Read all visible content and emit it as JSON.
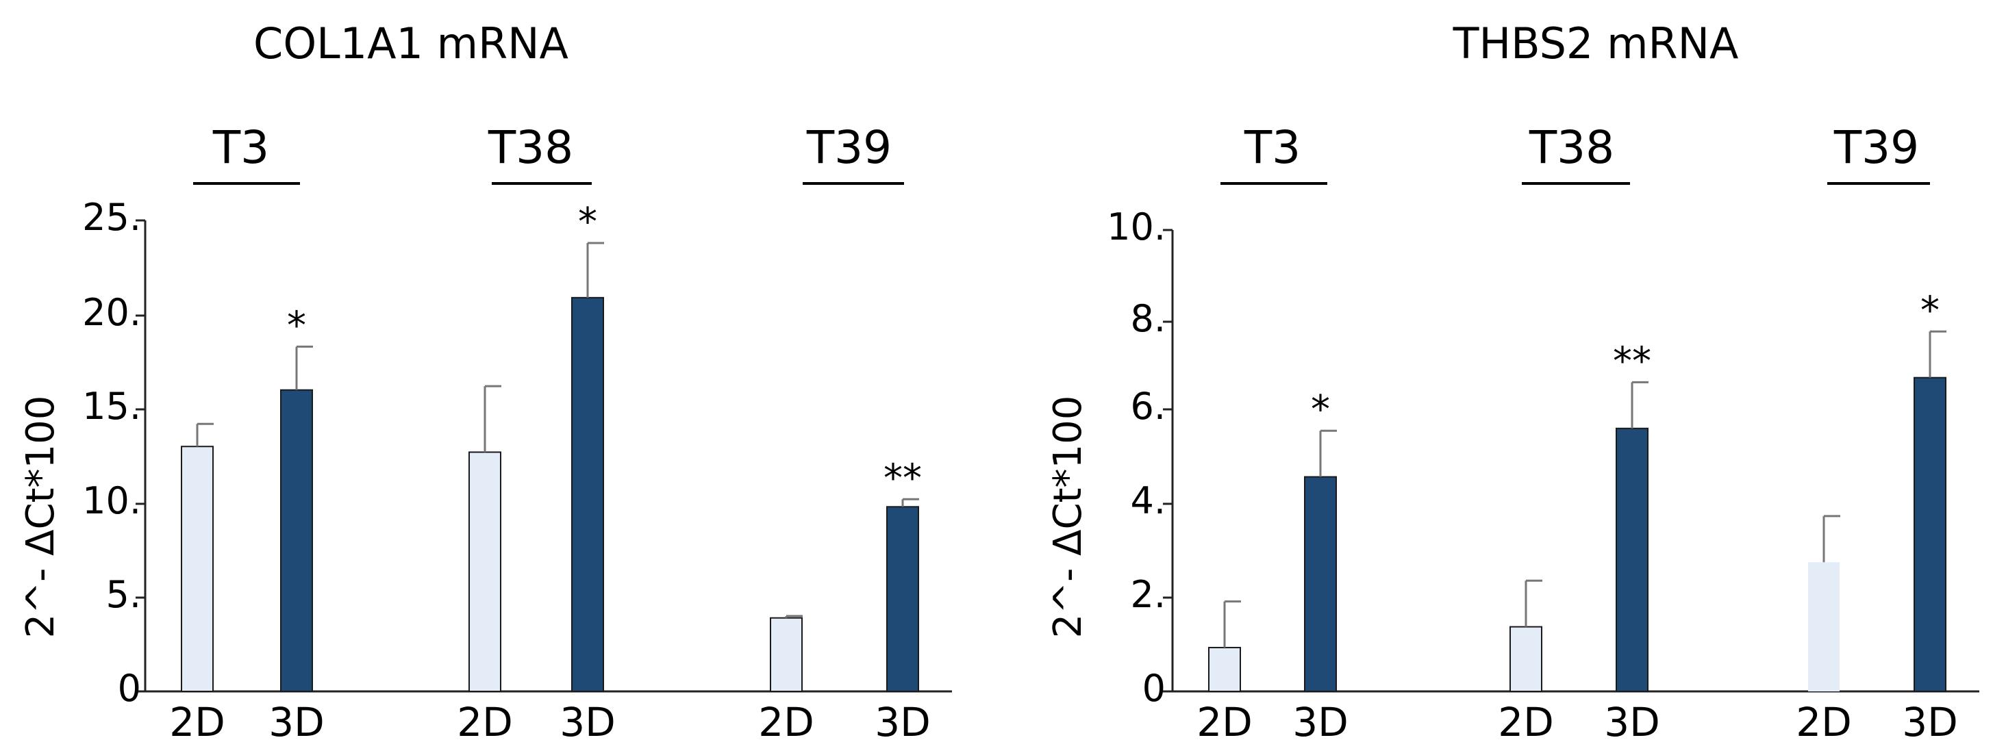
{
  "colors": {
    "bar_2d": "#e3ecf7",
    "bar_3d": "#1f4a75",
    "axis": "#222222",
    "error": "#777777"
  },
  "chart_data": [
    {
      "type": "bar",
      "title": "COL1A1 mRNA",
      "ylabel": "2^- ΔCt*100",
      "ylim": [
        0,
        25
      ],
      "yticks": [
        "0",
        "5.",
        "10.",
        "15.",
        "20.",
        "25."
      ],
      "grid": false,
      "groups": [
        {
          "label": "T3",
          "bars": [
            {
              "category": "2D",
              "value": 13.0,
              "error": 1.2,
              "sig": ""
            },
            {
              "category": "3D",
              "value": 16.0,
              "error": 2.3,
              "sig": "*"
            }
          ]
        },
        {
          "label": "T38",
          "bars": [
            {
              "category": "2D",
              "value": 12.7,
              "error": 3.5,
              "sig": ""
            },
            {
              "category": "3D",
              "value": 20.9,
              "error": 2.9,
              "sig": "*"
            }
          ]
        },
        {
          "label": "T39",
          "bars": [
            {
              "category": "2D",
              "value": 3.9,
              "error": 0.1,
              "sig": ""
            },
            {
              "category": "3D",
              "value": 9.8,
              "error": 0.4,
              "sig": "**"
            }
          ]
        }
      ]
    },
    {
      "type": "bar",
      "title": "THBS2 mRNA",
      "ylabel": "2^- ΔCt*100",
      "ylim": [
        0,
        10
      ],
      "yticks": [
        "0",
        "2.",
        "4.",
        "6.",
        "8.",
        "10."
      ],
      "grid": false,
      "groups": [
        {
          "label": "T3",
          "bars": [
            {
              "category": "2D",
              "value": 0.95,
              "error": 1.0,
              "sig": ""
            },
            {
              "category": "3D",
              "value": 4.65,
              "error": 1.0,
              "sig": "*"
            }
          ]
        },
        {
          "label": "T38",
          "bars": [
            {
              "category": "2D",
              "value": 1.4,
              "error": 1.0,
              "sig": ""
            },
            {
              "category": "3D",
              "value": 5.7,
              "error": 1.0,
              "sig": "**"
            }
          ]
        },
        {
          "label": "T39",
          "bars": [
            {
              "category": "2D",
              "value": 2.8,
              "error": 1.0,
              "sig": ""
            },
            {
              "category": "3D",
              "value": 6.8,
              "error": 1.0,
              "sig": "*"
            }
          ]
        }
      ]
    }
  ]
}
